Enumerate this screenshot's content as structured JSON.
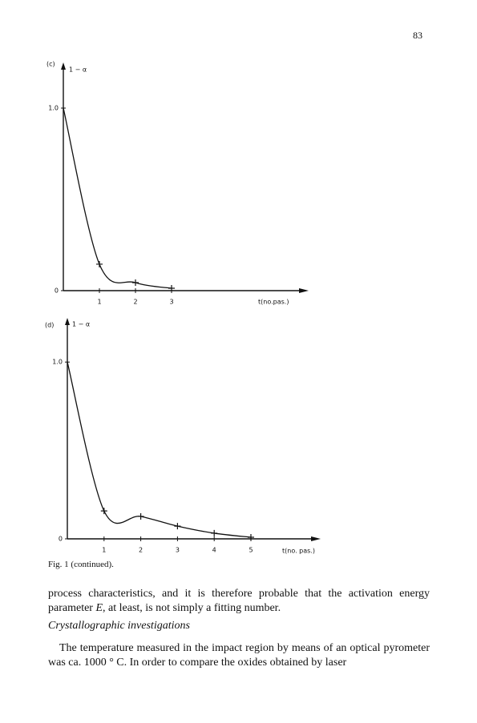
{
  "page_number": "83",
  "chart_data": [
    {
      "type": "line",
      "panel": "(c)",
      "y_label": "1 − α",
      "x_label": "t(no.pas.)",
      "x": [
        0,
        1,
        2,
        3
      ],
      "series": [
        {
          "values": [
            1.0,
            0.145,
            0.044,
            0.013
          ],
          "color": "#111111"
        }
      ],
      "xlim": [
        0,
        6.8
      ],
      "ylim": [
        0,
        1.25
      ],
      "xticks": [
        1,
        2,
        3
      ],
      "yticks": [
        0,
        {
          "value": 1,
          "label": "1.0"
        }
      ]
    },
    {
      "type": "line",
      "panel": "(d)",
      "y_label": "1 − α",
      "x_label": "t(no. pas.)",
      "x": [
        0,
        1,
        2,
        3,
        4,
        5
      ],
      "series": [
        {
          "values": [
            1.0,
            0.158,
            0.127,
            0.072,
            0.032,
            0.009
          ],
          "color": "#111111"
        }
      ],
      "xlim": [
        0,
        6.9
      ],
      "ylim": [
        0,
        1.25
      ],
      "xticks": [
        1,
        2,
        3,
        4,
        5
      ],
      "yticks": [
        0,
        {
          "value": 1,
          "label": "1.0"
        }
      ]
    }
  ],
  "caption": "Fig. 1 (continued).",
  "paragraph_1": [
    "process characteristics, and it is therefore probable that the activation energy parameter ",
    "E",
    ", at least, is not simply a fitting number."
  ],
  "heading": "Crystallographic investigations",
  "paragraph_2": "The temperature measured in the impact region by means of an optical pyrometer was ca. 1000 ° C. In order to compare the oxides obtained by laser"
}
